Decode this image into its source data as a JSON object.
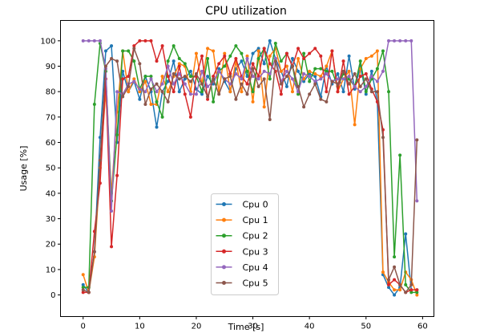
{
  "chart_data": {
    "type": "line",
    "title": "CPU utilization",
    "xlabel": "Time [s]",
    "ylabel": "Usage [%]",
    "xlim": [
      -4,
      62
    ],
    "ylim": [
      -8.5,
      108
    ],
    "xticks": [
      0,
      10,
      20,
      30,
      40,
      50,
      60
    ],
    "yticks": [
      0,
      10,
      20,
      30,
      40,
      50,
      60,
      70,
      80,
      90,
      100
    ],
    "grid": false,
    "legend_position": "lower-center",
    "series": [
      {
        "name": "Cpu 0",
        "color": "#1f77b4",
        "x": [
          0,
          1,
          2,
          3,
          4,
          5,
          6,
          7,
          8,
          9,
          10,
          11,
          12,
          13,
          14,
          15,
          16,
          17,
          18,
          19,
          20,
          21,
          22,
          23,
          24,
          25,
          26,
          27,
          28,
          29,
          30,
          31,
          32,
          33,
          34,
          35,
          36,
          37,
          38,
          39,
          40,
          41,
          42,
          43,
          44,
          45,
          46,
          47,
          48,
          49,
          50,
          51,
          52,
          53,
          54,
          55,
          56,
          57,
          58,
          59
        ],
        "y": [
          4,
          1,
          17,
          62,
          96,
          98,
          60,
          88,
          80,
          84,
          77,
          86,
          80,
          66,
          80,
          84,
          92,
          80,
          85,
          88,
          81,
          79,
          86,
          83,
          89,
          84,
          80,
          89,
          92,
          86,
          95,
          97,
          91,
          100,
          93,
          88,
          82,
          93,
          88,
          84,
          87,
          86,
          78,
          90,
          83,
          87,
          80,
          94,
          81,
          90,
          79,
          88,
          76,
          8,
          3,
          0,
          3,
          24,
          2,
          2
        ]
      },
      {
        "name": "Cpu 1",
        "color": "#ff7f0e",
        "x": [
          0,
          1,
          2,
          3,
          4,
          5,
          6,
          7,
          8,
          9,
          10,
          11,
          12,
          13,
          14,
          15,
          16,
          17,
          18,
          19,
          20,
          21,
          22,
          23,
          24,
          25,
          26,
          27,
          28,
          29,
          30,
          31,
          32,
          33,
          34,
          35,
          36,
          37,
          38,
          39,
          40,
          41,
          42,
          43,
          44,
          45,
          46,
          47,
          48,
          49,
          50,
          51,
          52,
          53,
          54,
          55,
          56,
          57,
          58,
          59
        ],
        "y": [
          8,
          1,
          15,
          50,
          80,
          40,
          72,
          96,
          80,
          85,
          80,
          84,
          75,
          75,
          86,
          80,
          86,
          91,
          90,
          80,
          95,
          83,
          97,
          96,
          80,
          95,
          80,
          92,
          80,
          94,
          76,
          96,
          74,
          94,
          97,
          88,
          90,
          80,
          93,
          85,
          88,
          87,
          86,
          90,
          96,
          80,
          85,
          88,
          67,
          89,
          93,
          94,
          96,
          9,
          5,
          2,
          2,
          9,
          6,
          0
        ]
      },
      {
        "name": "Cpu 2",
        "color": "#2ca02c",
        "x": [
          0,
          1,
          2,
          3,
          4,
          5,
          6,
          7,
          8,
          9,
          10,
          11,
          12,
          13,
          14,
          15,
          16,
          17,
          18,
          19,
          20,
          21,
          22,
          23,
          24,
          25,
          26,
          27,
          28,
          29,
          30,
          31,
          32,
          33,
          34,
          35,
          36,
          37,
          38,
          39,
          40,
          41,
          42,
          43,
          44,
          45,
          46,
          47,
          48,
          49,
          50,
          51,
          52,
          53,
          54,
          55,
          56,
          57,
          58,
          59
        ],
        "y": [
          3,
          3,
          75,
          99,
          88,
          37,
          63,
          96,
          96,
          92,
          81,
          86,
          86,
          76,
          70,
          92,
          98,
          93,
          91,
          86,
          86,
          80,
          93,
          76,
          88,
          90,
          94,
          98,
          95,
          88,
          80,
          93,
          97,
          85,
          99,
          92,
          95,
          90,
          79,
          95,
          84,
          89,
          89,
          88,
          88,
          82,
          87,
          85,
          82,
          92,
          80,
          85,
          89,
          96,
          80,
          15,
          55,
          4,
          1,
          1
        ]
      },
      {
        "name": "Cpu 3",
        "color": "#d62728",
        "x": [
          0,
          1,
          2,
          3,
          4,
          5,
          6,
          7,
          8,
          9,
          10,
          11,
          12,
          13,
          14,
          15,
          16,
          17,
          18,
          19,
          20,
          21,
          22,
          23,
          24,
          25,
          26,
          27,
          28,
          29,
          30,
          31,
          32,
          33,
          34,
          35,
          36,
          37,
          38,
          39,
          40,
          41,
          42,
          43,
          44,
          45,
          46,
          47,
          48,
          49,
          50,
          51,
          52,
          53,
          54,
          55,
          56,
          57,
          58,
          59
        ],
        "y": [
          1,
          1,
          25,
          44,
          85,
          19,
          47,
          85,
          86,
          98,
          100,
          100,
          100,
          92,
          98,
          86,
          80,
          90,
          79,
          70,
          86,
          94,
          77,
          86,
          91,
          94,
          87,
          93,
          86,
          83,
          91,
          86,
          97,
          91,
          88,
          79,
          95,
          90,
          97,
          93,
          95,
          97,
          94,
          80,
          96,
          80,
          92,
          79,
          82,
          86,
          87,
          81,
          76,
          65,
          4,
          6,
          4,
          1,
          2,
          2
        ]
      },
      {
        "name": "Cpu 4",
        "color": "#9467bd",
        "x": [
          0,
          1,
          2,
          3,
          4,
          5,
          6,
          7,
          8,
          9,
          10,
          11,
          12,
          13,
          14,
          15,
          16,
          17,
          18,
          19,
          20,
          21,
          22,
          23,
          24,
          25,
          26,
          27,
          28,
          29,
          30,
          31,
          32,
          33,
          34,
          35,
          36,
          37,
          38,
          39,
          40,
          41,
          42,
          43,
          44,
          45,
          46,
          47,
          48,
          49,
          50,
          51,
          52,
          53,
          54,
          55,
          56,
          57,
          58,
          59
        ],
        "y": [
          100,
          100,
          100,
          100,
          89,
          33,
          80,
          79,
          83,
          84,
          81,
          80,
          85,
          80,
          83,
          90,
          83,
          87,
          83,
          79,
          79,
          88,
          82,
          84,
          88,
          85,
          83,
          87,
          85,
          93,
          86,
          85,
          88,
          87,
          93,
          84,
          88,
          85,
          80,
          87,
          86,
          84,
          85,
          87,
          84,
          85,
          85,
          86,
          82,
          80,
          82,
          86,
          84,
          88,
          100,
          100,
          100,
          100,
          100,
          37
        ]
      },
      {
        "name": "Cpu 5",
        "color": "#8c564b",
        "x": [
          0,
          1,
          2,
          3,
          4,
          5,
          6,
          7,
          8,
          9,
          10,
          11,
          12,
          13,
          14,
          15,
          16,
          17,
          18,
          19,
          20,
          21,
          22,
          23,
          24,
          25,
          26,
          27,
          28,
          29,
          30,
          31,
          32,
          33,
          34,
          35,
          36,
          37,
          38,
          39,
          40,
          41,
          42,
          43,
          44,
          45,
          46,
          47,
          48,
          49,
          50,
          51,
          52,
          53,
          54,
          55,
          56,
          57,
          58,
          59
        ],
        "y": [
          2,
          1,
          17,
          53,
          90,
          93,
          92,
          78,
          82,
          97,
          91,
          75,
          81,
          83,
          80,
          76,
          87,
          85,
          86,
          84,
          87,
          83,
          78,
          85,
          79,
          85,
          86,
          77,
          83,
          79,
          89,
          82,
          85,
          69,
          92,
          83,
          86,
          90,
          82,
          74,
          79,
          83,
          77,
          76,
          84,
          83,
          88,
          83,
          87,
          82,
          85,
          80,
          80,
          62,
          6,
          11,
          4,
          1,
          4,
          61
        ]
      }
    ]
  }
}
